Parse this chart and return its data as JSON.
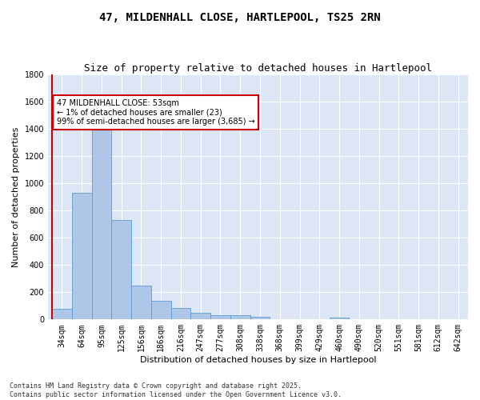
{
  "title": "47, MILDENHALL CLOSE, HARTLEPOOL, TS25 2RN",
  "subtitle": "Size of property relative to detached houses in Hartlepool",
  "xlabel": "Distribution of detached houses by size in Hartlepool",
  "ylabel": "Number of detached properties",
  "footer": "Contains HM Land Registry data © Crown copyright and database right 2025.\nContains public sector information licensed under the Open Government Licence v3.0.",
  "categories": [
    "34sqm",
    "64sqm",
    "95sqm",
    "125sqm",
    "156sqm",
    "186sqm",
    "216sqm",
    "247sqm",
    "277sqm",
    "308sqm",
    "338sqm",
    "368sqm",
    "399sqm",
    "429sqm",
    "460sqm",
    "490sqm",
    "520sqm",
    "551sqm",
    "581sqm",
    "612sqm",
    "642sqm"
  ],
  "values": [
    80,
    930,
    1400,
    730,
    248,
    140,
    85,
    50,
    30,
    30,
    20,
    0,
    0,
    0,
    15,
    0,
    0,
    0,
    0,
    0,
    0
  ],
  "bar_color": "#aec6e8",
  "bar_edge_color": "#5b9bd5",
  "subject_line_color": "#cc0000",
  "annotation_text": "47 MILDENHALL CLOSE: 53sqm\n← 1% of detached houses are smaller (23)\n99% of semi-detached houses are larger (3,685) →",
  "annotation_box_color": "#cc0000",
  "annotation_text_color": "#000000",
  "ylim": [
    0,
    1800
  ],
  "yticks": [
    0,
    200,
    400,
    600,
    800,
    1000,
    1200,
    1400,
    1600,
    1800
  ],
  "background_color": "#dce6f5",
  "grid_color": "#ffffff",
  "title_fontsize": 10,
  "subtitle_fontsize": 9,
  "axis_label_fontsize": 8,
  "tick_fontsize": 7,
  "footer_fontsize": 6
}
